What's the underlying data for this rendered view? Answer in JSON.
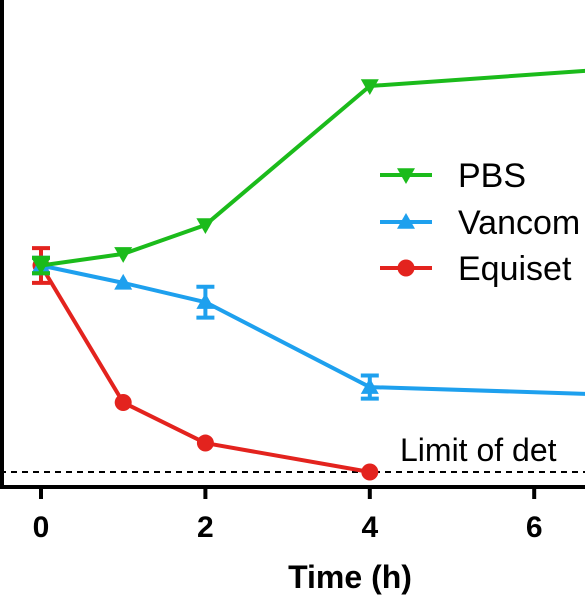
{
  "chart_data": {
    "type": "line",
    "xlabel": "Time (h)",
    "x_ticks": [
      "0",
      "2",
      "4",
      "6"
    ],
    "xlim": [
      -0.5,
      6.6
    ],
    "ylim": [
      0,
      10.5
    ],
    "grid": false,
    "legend_position": "right",
    "reference_line_label": "Limit of det",
    "reference_line_value": 0,
    "series": [
      {
        "name": "PBS",
        "color": "#1bbb1b",
        "marker": "triangle-down",
        "x": [
          0,
          1,
          2,
          4,
          7
        ],
        "y": [
          5.35,
          5.65,
          6.4,
          10.0,
          10.45
        ],
        "err": [
          0.2,
          0.0,
          0.0,
          0.0,
          0.0
        ]
      },
      {
        "name": "Vancom",
        "color": "#1ea0ee",
        "marker": "triangle-up",
        "x": [
          0,
          1,
          2,
          4,
          7
        ],
        "y": [
          5.35,
          4.9,
          4.4,
          2.2,
          2.0
        ],
        "err": [
          0.2,
          0.0,
          0.4,
          0.3,
          0.0
        ]
      },
      {
        "name": "Equiset",
        "color": "#e3231e",
        "marker": "circle",
        "x": [
          0,
          1,
          2,
          4
        ],
        "y": [
          5.35,
          1.8,
          0.75,
          0.0
        ],
        "err": [
          0.45,
          0.0,
          0.0,
          0.0
        ]
      }
    ]
  }
}
